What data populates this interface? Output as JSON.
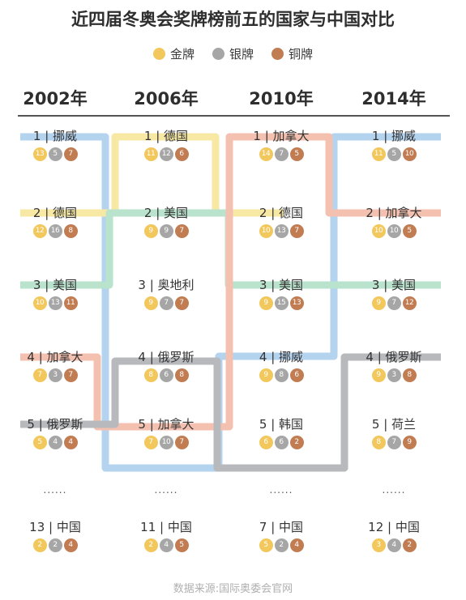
{
  "title": "近四届冬奥会奖牌榜前五的国家与中国对比",
  "legend": [
    {
      "label": "金牌",
      "color": "#f2c75c"
    },
    {
      "label": "银牌",
      "color": "#a6a6a6"
    },
    {
      "label": "铜牌",
      "color": "#c27c52"
    }
  ],
  "source": "数据来源:国际奥委会官网",
  "ellipsis": "......",
  "chart_data": {
    "type": "table",
    "title": "近四届冬奥会奖牌榜前五的国家与中国对比",
    "years": [
      "2002年",
      "2006年",
      "2010年",
      "2014年"
    ],
    "columns": [
      {
        "year": "2002年",
        "entries": [
          {
            "label": "1 | 挪威",
            "country": "挪威",
            "rank": 1,
            "gold": 13,
            "silver": 5,
            "bronze": 7
          },
          {
            "label": "2 | 德国",
            "country": "德国",
            "rank": 2,
            "gold": 12,
            "silver": 16,
            "bronze": 8
          },
          {
            "label": "3 | 美国",
            "country": "美国",
            "rank": 3,
            "gold": 10,
            "silver": 13,
            "bronze": 11
          },
          {
            "label": "4 | 加拿大",
            "country": "加拿大",
            "rank": 4,
            "gold": 7,
            "silver": 3,
            "bronze": 7
          },
          {
            "label": "5 | 俄罗斯",
            "country": "俄罗斯",
            "rank": 5,
            "gold": 5,
            "silver": 4,
            "bronze": 4
          },
          {
            "label": "13 | 中国",
            "country": "中国",
            "rank": 13,
            "gold": 2,
            "silver": 2,
            "bronze": 4
          }
        ]
      },
      {
        "year": "2006年",
        "entries": [
          {
            "label": "1 | 德国",
            "country": "德国",
            "rank": 1,
            "gold": 11,
            "silver": 12,
            "bronze": 6
          },
          {
            "label": "2 | 美国",
            "country": "美国",
            "rank": 2,
            "gold": 9,
            "silver": 9,
            "bronze": 7
          },
          {
            "label": "3 | 奥地利",
            "country": "奥地利",
            "rank": 3,
            "gold": 9,
            "silver": 7,
            "bronze": 7
          },
          {
            "label": "4 | 俄罗斯",
            "country": "俄罗斯",
            "rank": 4,
            "gold": 8,
            "silver": 6,
            "bronze": 8
          },
          {
            "label": "5 | 加拿大",
            "country": "加拿大",
            "rank": 5,
            "gold": 7,
            "silver": 10,
            "bronze": 7
          },
          {
            "label": "11 | 中国",
            "country": "中国",
            "rank": 11,
            "gold": 2,
            "silver": 4,
            "bronze": 5
          }
        ]
      },
      {
        "year": "2010年",
        "entries": [
          {
            "label": "1 | 加拿大",
            "country": "加拿大",
            "rank": 1,
            "gold": 14,
            "silver": 7,
            "bronze": 5
          },
          {
            "label": "2 | 德国",
            "country": "德国",
            "rank": 2,
            "gold": 10,
            "silver": 13,
            "bronze": 7
          },
          {
            "label": "3 | 美国",
            "country": "美国",
            "rank": 3,
            "gold": 9,
            "silver": 15,
            "bronze": 13
          },
          {
            "label": "4 | 挪威",
            "country": "挪威",
            "rank": 4,
            "gold": 9,
            "silver": 8,
            "bronze": 6
          },
          {
            "label": "5 | 韩国",
            "country": "韩国",
            "rank": 5,
            "gold": 6,
            "silver": 6,
            "bronze": 2
          },
          {
            "label": "7 | 中国",
            "country": "中国",
            "rank": 7,
            "gold": 5,
            "silver": 2,
            "bronze": 4
          }
        ]
      },
      {
        "year": "2014年",
        "entries": [
          {
            "label": "1 | 挪威",
            "country": "挪威",
            "rank": 1,
            "gold": 11,
            "silver": 5,
            "bronze": 10
          },
          {
            "label": "2 | 加拿大",
            "country": "加拿大",
            "rank": 2,
            "gold": 10,
            "silver": 10,
            "bronze": 5
          },
          {
            "label": "3 | 美国",
            "country": "美国",
            "rank": 3,
            "gold": 9,
            "silver": 7,
            "bronze": 12
          },
          {
            "label": "4 | 俄罗斯",
            "country": "俄罗斯",
            "rank": 4,
            "gold": 9,
            "silver": 3,
            "bronze": 8
          },
          {
            "label": "5 | 荷兰",
            "country": "荷兰",
            "rank": 5,
            "gold": 8,
            "silver": 7,
            "bronze": 9
          },
          {
            "label": "12 | 中国",
            "country": "中国",
            "rank": 12,
            "gold": 3,
            "silver": 4,
            "bronze": 2
          }
        ]
      }
    ],
    "country_line_colors": {
      "挪威": "#b4d3ef",
      "德国": "#f7e8a4",
      "美国": "#b9e3cd",
      "加拿大": "#f4c1b0",
      "俄罗斯": "#b7b9bd"
    }
  }
}
